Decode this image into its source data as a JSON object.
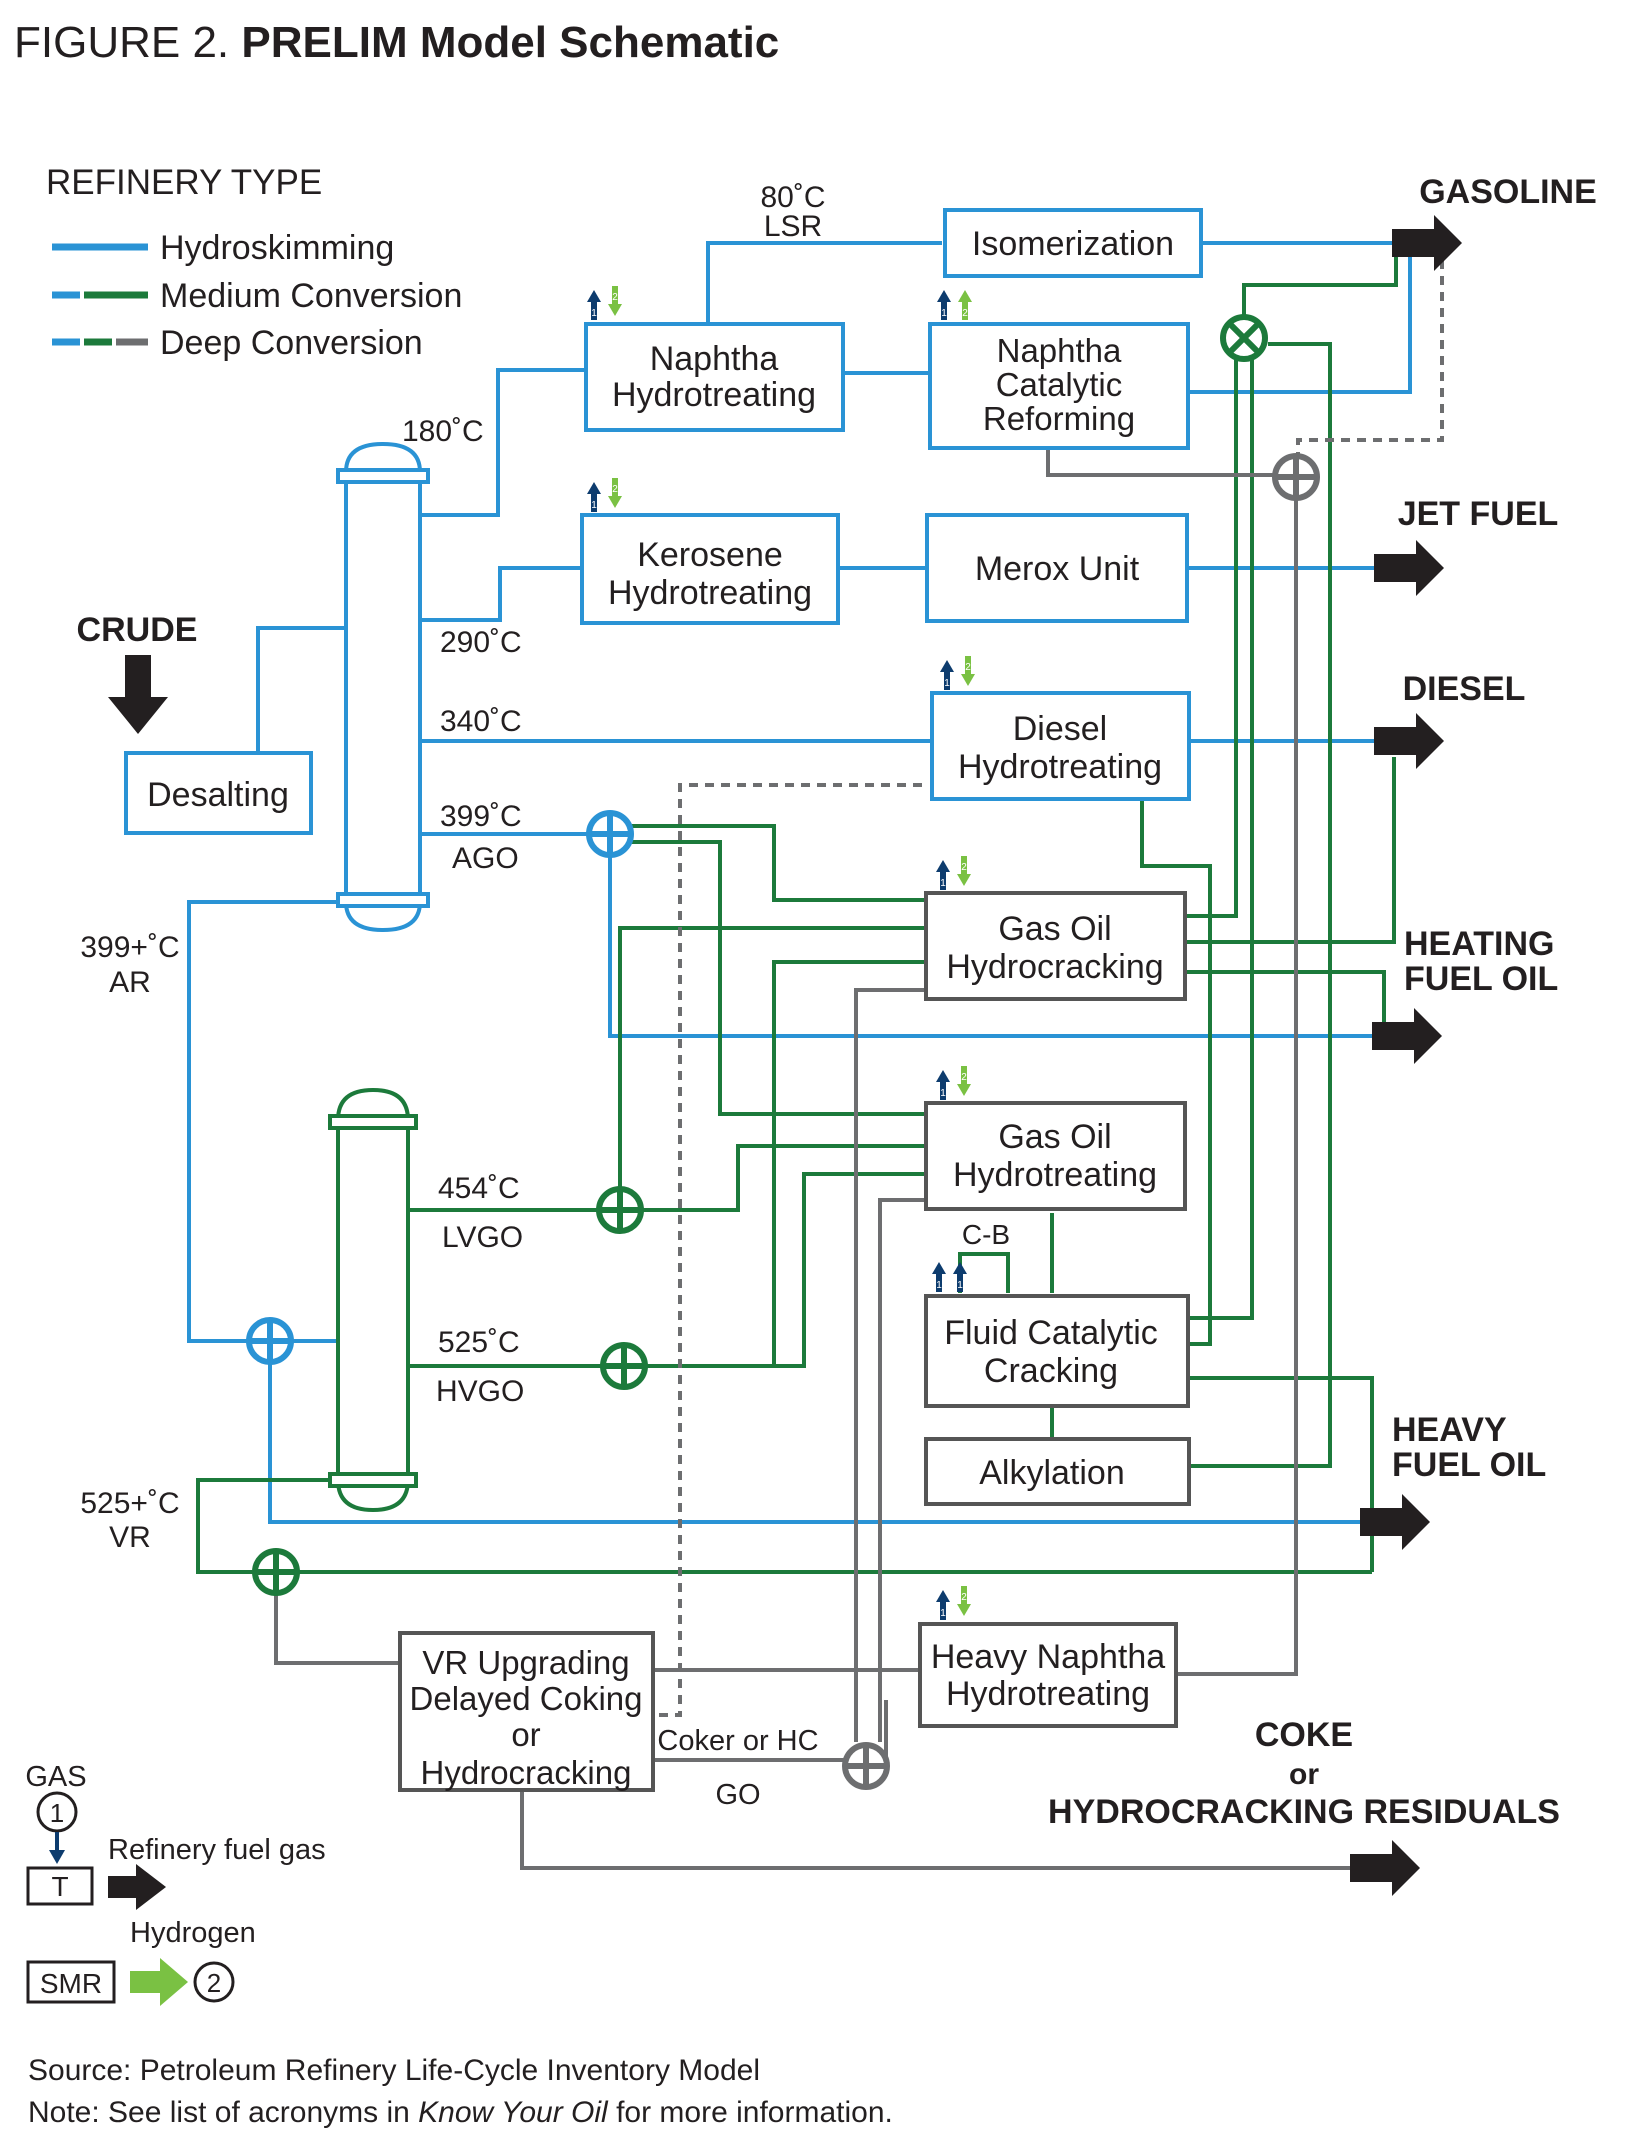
{
  "title": {
    "prefix": "FIGURE 2.",
    "main": "PRELIM Model Schematic"
  },
  "legend": {
    "heading": "REFINERY TYPE",
    "items": [
      "Hydroskimming",
      "Medium Conversion",
      "Deep Conversion"
    ]
  },
  "inputs": {
    "crude": "CRUDE"
  },
  "units": {
    "desalting": "Desalting",
    "isomerization": "Isomerization",
    "naphtha_hydrotreating": [
      "Naphtha",
      "Hydrotreating"
    ],
    "naphtha_reforming": [
      "Naphtha",
      "Catalytic",
      "Reforming"
    ],
    "kerosene_hydrotreating": [
      "Kerosene",
      "Hydrotreating"
    ],
    "merox": "Merox Unit",
    "diesel_hydrotreating": [
      "Diesel",
      "Hydrotreating"
    ],
    "gasoil_hydrocracking": [
      "Gas Oil",
      "Hydrocracking"
    ],
    "gasoil_hydrotreating": [
      "Gas Oil",
      "Hydrotreating"
    ],
    "fcc": [
      "Fluid Catalytic",
      "Cracking"
    ],
    "alkylation": "Alkylation",
    "heavy_naphtha_hydrotreating": [
      "Heavy Naphtha",
      "Hydrotreating"
    ],
    "vr_upgrading": [
      "VR Upgrading",
      "Delayed Coking",
      "or",
      "Hydrocracking"
    ]
  },
  "stream_labels": {
    "lsr_temp": "80˚C",
    "lsr": "LSR",
    "t180": "180˚C",
    "t290": "290˚C",
    "t340": "340˚C",
    "t399": "399˚C",
    "ago": "AGO",
    "ar_temp": "399+˚C",
    "ar": "AR",
    "t454": "454˚C",
    "lvgo": "LVGO",
    "t525": "525˚C",
    "hvgo": "HVGO",
    "vr_temp": "525+˚C",
    "vr": "VR",
    "cb": "C-B",
    "coker_hc": "Coker or HC",
    "go": "GO"
  },
  "products": {
    "gasoline": "GASOLINE",
    "jet": "JET FUEL",
    "diesel": "DIESEL",
    "heating": [
      "HEATING",
      "FUEL OIL"
    ],
    "heavy": [
      "HEAVY",
      "FUEL OIL"
    ],
    "coke": [
      "COKE",
      "or",
      "HYDROCRACKING RESIDUALS"
    ]
  },
  "key": {
    "gas": "GAS",
    "one": "1",
    "t": "T",
    "fuel_gas": "Refinery fuel gas",
    "hydrogen": "Hydrogen",
    "smr": "SMR",
    "two": "2"
  },
  "footer": {
    "source": "Source: Petroleum Refinery Life-Cycle Inventory Model",
    "note_pre": "Note: See list of acronyms in ",
    "note_em": "Know Your Oil",
    "note_post": " for more information."
  },
  "colors": {
    "hydroskimming": "#2a93d5",
    "medium": "#1c7a3b",
    "deep": "#6d6e70",
    "hydrogen": "#7ac143",
    "fuel_gas": "#0d3c6e",
    "product_arrow": "#231f20"
  }
}
